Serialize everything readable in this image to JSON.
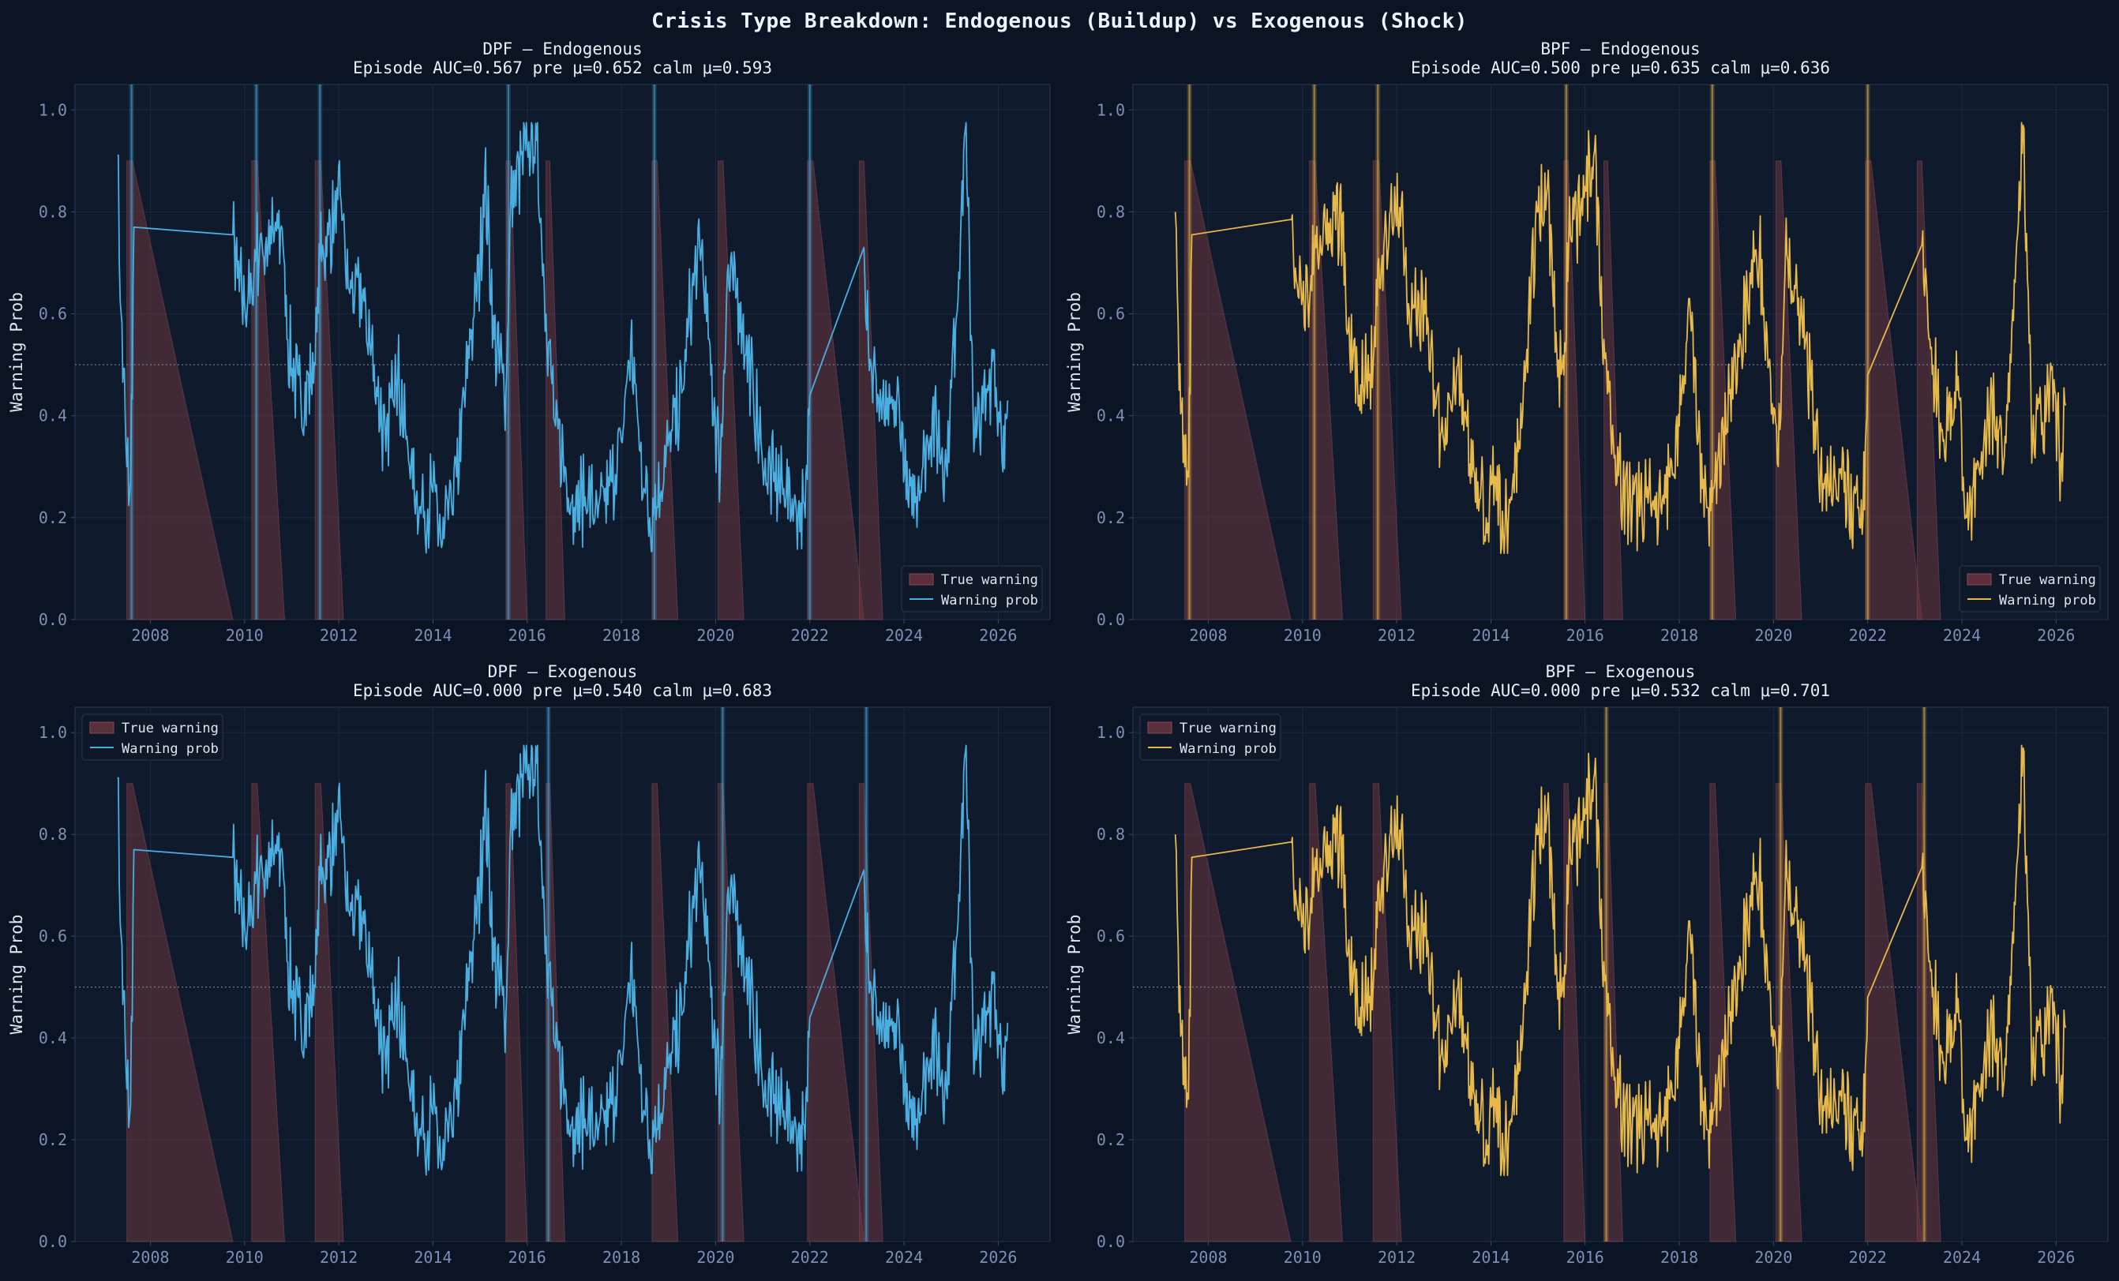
{
  "figure_title": "Crisis Type Breakdown: Endogenous (Buildup) vs Exogenous (Shock)",
  "colors": {
    "background": "#0b1424",
    "axes_bg": "#0f1a2c",
    "dpf_line": "#4aaee0",
    "bpf_line": "#e7b84a",
    "true_warning_fill": "#6e3640",
    "grid": "#1b2a40",
    "tick": "#7c8fb5"
  },
  "chart_data": [
    {
      "type": "line",
      "title": "DPF — Endogenous",
      "subtitle": "Episode AUC=0.567  pre μ=0.652  calm μ=0.593",
      "ylabel": "Warning Prob",
      "xlim": [
        2006.4,
        2027.1
      ],
      "ylim": [
        0.0,
        1.05
      ],
      "yticks": [
        "0.0",
        "0.2",
        "0.4",
        "0.6",
        "0.8",
        "1.0"
      ],
      "xticks": [
        "2008",
        "2010",
        "2012",
        "2014",
        "2016",
        "2018",
        "2020",
        "2022",
        "2024",
        "2026"
      ],
      "threshold": 0.5,
      "legend": {
        "position": "bottom-right",
        "entries": [
          "True warning",
          "Warning prob"
        ]
      },
      "series_color": "#4aaee0",
      "highlight_crises": [
        2007.6,
        2010.25,
        2011.6,
        2015.6,
        2018.7,
        2022.0
      ]
    },
    {
      "type": "line",
      "title": "BPF — Endogenous",
      "subtitle": "Episode AUC=0.500  pre μ=0.635  calm μ=0.636",
      "ylabel": "Warning Prob",
      "xlim": [
        2006.4,
        2027.1
      ],
      "ylim": [
        0.0,
        1.05
      ],
      "yticks": [
        "0.0",
        "0.2",
        "0.4",
        "0.6",
        "0.8",
        "1.0"
      ],
      "xticks": [
        "2008",
        "2010",
        "2012",
        "2014",
        "2016",
        "2018",
        "2020",
        "2022",
        "2024",
        "2026"
      ],
      "threshold": 0.5,
      "legend": {
        "position": "bottom-right",
        "entries": [
          "True warning",
          "Warning prob"
        ]
      },
      "series_color": "#e7b84a",
      "highlight_crises": [
        2007.6,
        2010.25,
        2011.6,
        2015.6,
        2018.7,
        2022.0
      ]
    },
    {
      "type": "line",
      "title": "DPF — Exogenous",
      "subtitle": "Episode AUC=0.000  pre μ=0.540  calm μ=0.683",
      "ylabel": "Warning Prob",
      "xlim": [
        2006.4,
        2027.1
      ],
      "ylim": [
        0.0,
        1.05
      ],
      "yticks": [
        "0.0",
        "0.2",
        "0.4",
        "0.6",
        "0.8",
        "1.0"
      ],
      "xticks": [
        "2008",
        "2010",
        "2012",
        "2014",
        "2016",
        "2018",
        "2020",
        "2022",
        "2024",
        "2026"
      ],
      "threshold": 0.5,
      "legend": {
        "position": "top-left",
        "entries": [
          "True warning",
          "Warning prob"
        ]
      },
      "series_color": "#4aaee0",
      "highlight_crises": [
        2016.45,
        2020.15,
        2023.2
      ]
    },
    {
      "type": "line",
      "title": "BPF — Exogenous",
      "subtitle": "Episode AUC=0.000  pre μ=0.532  calm μ=0.701",
      "ylabel": "Warning Prob",
      "xlim": [
        2006.4,
        2027.1
      ],
      "ylim": [
        0.0,
        1.05
      ],
      "yticks": [
        "0.0",
        "0.2",
        "0.4",
        "0.6",
        "0.8",
        "1.0"
      ],
      "xticks": [
        "2008",
        "2010",
        "2012",
        "2014",
        "2016",
        "2018",
        "2020",
        "2022",
        "2024",
        "2026"
      ],
      "threshold": 0.5,
      "legend": {
        "position": "top-left",
        "entries": [
          "True warning",
          "Warning prob"
        ]
      },
      "series_color": "#e7b84a",
      "highlight_crises": [
        2016.45,
        2020.15,
        2023.2
      ]
    }
  ],
  "true_warning_episodes": [
    [
      2007.5,
      2009.75
    ],
    [
      2010.15,
      2010.85
    ],
    [
      2011.5,
      2012.1
    ],
    [
      2015.55,
      2016.0
    ],
    [
      2016.4,
      2016.8
    ],
    [
      2018.65,
      2019.2
    ],
    [
      2020.05,
      2020.6
    ],
    [
      2021.95,
      2023.15
    ],
    [
      2023.05,
      2023.55
    ]
  ],
  "warning_prob_anchor_points": {
    "dpf": [
      [
        2007.3,
        0.91
      ],
      [
        2007.38,
        0.6
      ],
      [
        2007.5,
        0.3
      ],
      [
        2007.58,
        0.27
      ],
      [
        2007.65,
        0.77
      ],
      [
        2009.75,
        0.755
      ],
      [
        2009.85,
        0.67
      ],
      [
        2010.0,
        0.62
      ],
      [
        2010.15,
        0.65
      ],
      [
        2010.25,
        0.72
      ],
      [
        2010.8,
        0.765
      ],
      [
        2010.9,
        0.55
      ],
      [
        2011.2,
        0.42
      ],
      [
        2011.5,
        0.5
      ],
      [
        2011.6,
        0.71
      ],
      [
        2012.05,
        0.82
      ],
      [
        2012.2,
        0.65
      ],
      [
        2012.5,
        0.63
      ],
      [
        2012.75,
        0.5
      ],
      [
        2013.0,
        0.33
      ],
      [
        2013.2,
        0.52
      ],
      [
        2013.5,
        0.3
      ],
      [
        2013.8,
        0.2
      ],
      [
        2014.0,
        0.25
      ],
      [
        2014.2,
        0.15
      ],
      [
        2014.5,
        0.28
      ],
      [
        2014.8,
        0.55
      ],
      [
        2015.0,
        0.7
      ],
      [
        2015.1,
        0.88
      ],
      [
        2015.3,
        0.55
      ],
      [
        2015.55,
        0.45
      ],
      [
        2015.65,
        0.82
      ],
      [
        2016.0,
        0.93
      ],
      [
        2016.2,
        0.94
      ],
      [
        2016.4,
        0.6
      ],
      [
        2016.6,
        0.38
      ],
      [
        2016.8,
        0.3
      ],
      [
        2017.0,
        0.22
      ],
      [
        2017.3,
        0.25
      ],
      [
        2017.5,
        0.2
      ],
      [
        2017.8,
        0.27
      ],
      [
        2018.0,
        0.35
      ],
      [
        2018.2,
        0.55
      ],
      [
        2018.4,
        0.33
      ],
      [
        2018.6,
        0.2
      ],
      [
        2018.7,
        0.22
      ],
      [
        2019.3,
        0.45
      ],
      [
        2019.5,
        0.65
      ],
      [
        2019.7,
        0.73
      ],
      [
        2019.9,
        0.48
      ],
      [
        2020.1,
        0.3
      ],
      [
        2020.25,
        0.68
      ],
      [
        2020.5,
        0.62
      ],
      [
        2020.8,
        0.45
      ],
      [
        2021.0,
        0.3
      ],
      [
        2021.5,
        0.25
      ],
      [
        2021.9,
        0.2
      ],
      [
        2022.0,
        0.44
      ],
      [
        2023.15,
        0.73
      ],
      [
        2023.3,
        0.5
      ],
      [
        2023.6,
        0.38
      ],
      [
        2023.9,
        0.42
      ],
      [
        2024.1,
        0.22
      ],
      [
        2024.4,
        0.3
      ],
      [
        2024.6,
        0.4
      ],
      [
        2024.9,
        0.3
      ],
      [
        2025.2,
        0.75
      ],
      [
        2025.3,
        0.96
      ],
      [
        2025.5,
        0.35
      ],
      [
        2025.8,
        0.45
      ],
      [
        2025.9,
        0.53
      ],
      [
        2026.1,
        0.29
      ],
      [
        2026.2,
        0.43
      ]
    ],
    "bpf": [
      [
        2007.3,
        0.8
      ],
      [
        2007.38,
        0.45
      ],
      [
        2007.5,
        0.3
      ],
      [
        2007.58,
        0.28
      ],
      [
        2007.65,
        0.755
      ],
      [
        2009.75,
        0.785
      ],
      [
        2009.85,
        0.69
      ],
      [
        2010.0,
        0.63
      ],
      [
        2010.15,
        0.62
      ],
      [
        2010.25,
        0.72
      ],
      [
        2010.85,
        0.795
      ],
      [
        2010.95,
        0.56
      ],
      [
        2011.2,
        0.44
      ],
      [
        2011.5,
        0.5
      ],
      [
        2011.6,
        0.7
      ],
      [
        2012.1,
        0.82
      ],
      [
        2012.25,
        0.62
      ],
      [
        2012.6,
        0.6
      ],
      [
        2012.8,
        0.45
      ],
      [
        2013.0,
        0.35
      ],
      [
        2013.3,
        0.5
      ],
      [
        2013.6,
        0.28
      ],
      [
        2013.9,
        0.2
      ],
      [
        2014.1,
        0.28
      ],
      [
        2014.3,
        0.17
      ],
      [
        2014.6,
        0.35
      ],
      [
        2014.8,
        0.6
      ],
      [
        2015.0,
        0.8
      ],
      [
        2015.2,
        0.85
      ],
      [
        2015.4,
        0.52
      ],
      [
        2015.55,
        0.48
      ],
      [
        2015.65,
        0.73
      ],
      [
        2016.0,
        0.85
      ],
      [
        2016.2,
        0.92
      ],
      [
        2016.4,
        0.55
      ],
      [
        2016.6,
        0.35
      ],
      [
        2016.8,
        0.25
      ],
      [
        2017.0,
        0.22
      ],
      [
        2017.3,
        0.24
      ],
      [
        2017.5,
        0.2
      ],
      [
        2017.8,
        0.28
      ],
      [
        2018.0,
        0.38
      ],
      [
        2018.2,
        0.63
      ],
      [
        2018.4,
        0.35
      ],
      [
        2018.6,
        0.22
      ],
      [
        2018.7,
        0.23
      ],
      [
        2019.3,
        0.55
      ],
      [
        2019.5,
        0.68
      ],
      [
        2019.7,
        0.72
      ],
      [
        2019.9,
        0.5
      ],
      [
        2020.1,
        0.3
      ],
      [
        2020.25,
        0.7
      ],
      [
        2020.5,
        0.65
      ],
      [
        2020.8,
        0.45
      ],
      [
        2021.0,
        0.3
      ],
      [
        2021.5,
        0.25
      ],
      [
        2021.9,
        0.2
      ],
      [
        2022.0,
        0.48
      ],
      [
        2023.15,
        0.735
      ],
      [
        2023.3,
        0.55
      ],
      [
        2023.6,
        0.35
      ],
      [
        2023.9,
        0.45
      ],
      [
        2024.1,
        0.2
      ],
      [
        2024.4,
        0.3
      ],
      [
        2024.6,
        0.42
      ],
      [
        2024.9,
        0.32
      ],
      [
        2025.2,
        0.78
      ],
      [
        2025.3,
        0.97
      ],
      [
        2025.5,
        0.35
      ],
      [
        2025.8,
        0.42
      ],
      [
        2025.9,
        0.49
      ],
      [
        2026.1,
        0.31
      ],
      [
        2026.2,
        0.42
      ]
    ]
  }
}
